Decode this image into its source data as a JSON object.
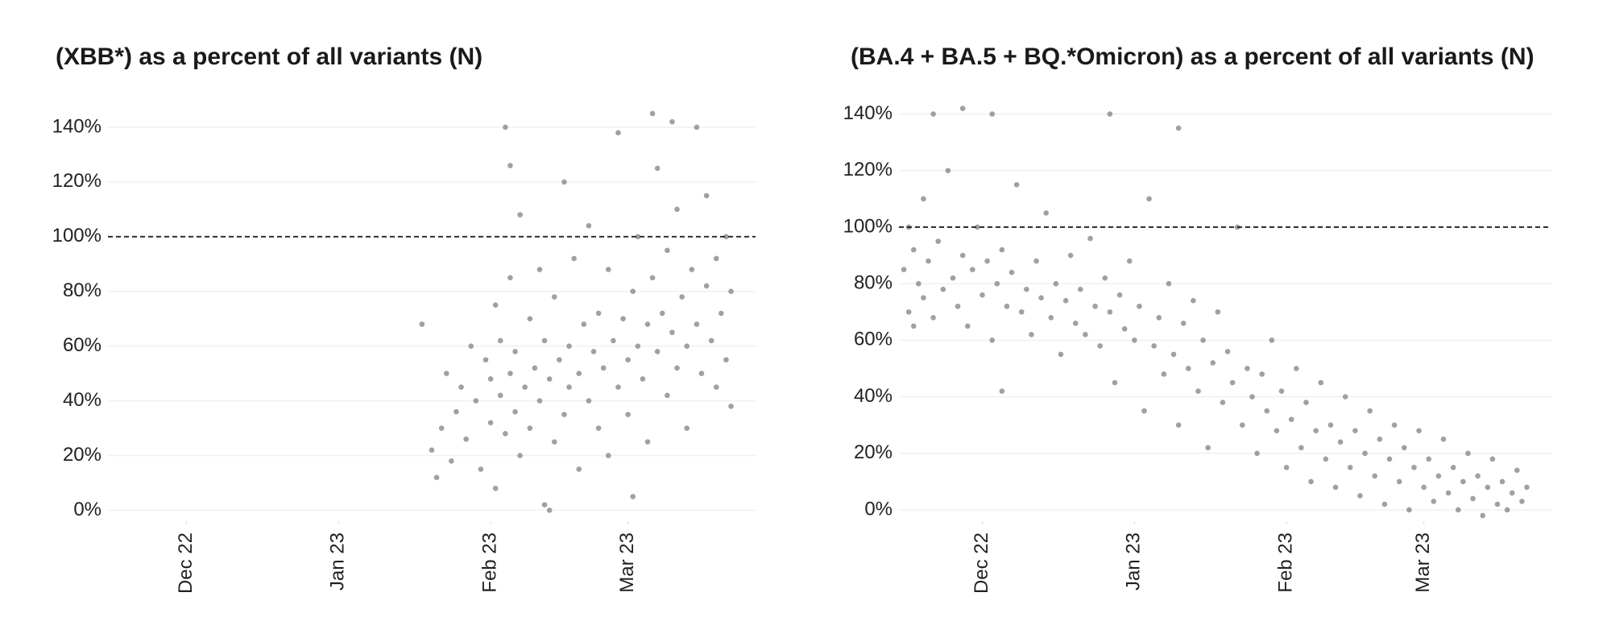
{
  "chart_data": [
    {
      "type": "scatter",
      "title": "(XBB*) as a percent of all variants (N)",
      "color": "#8f8f8f",
      "reference_line": 100,
      "grid": true,
      "xlim": [
        -16,
        116
      ],
      "ylim": [
        -4,
        150
      ],
      "xticks": [
        {
          "value": 0,
          "label": "Dec 22"
        },
        {
          "value": 31,
          "label": "Jan 23"
        },
        {
          "value": 62,
          "label": "Feb 23"
        },
        {
          "value": 90,
          "label": "Mar 23"
        }
      ],
      "yticks": [
        {
          "value": 0,
          "label": "0%"
        },
        {
          "value": 20,
          "label": "20%"
        },
        {
          "value": 40,
          "label": "40%"
        },
        {
          "value": 60,
          "label": "60%"
        },
        {
          "value": 80,
          "label": "80%"
        },
        {
          "value": 100,
          "label": "100%"
        },
        {
          "value": 120,
          "label": "120%"
        },
        {
          "value": 140,
          "label": "140%"
        }
      ],
      "x": [
        48,
        50,
        51,
        52,
        53,
        54,
        55,
        56,
        57,
        58,
        59,
        60,
        61,
        62,
        62,
        63,
        63,
        64,
        64,
        65,
        66,
        66,
        67,
        67,
        68,
        68,
        69,
        70,
        70,
        71,
        72,
        72,
        73,
        73,
        74,
        75,
        75,
        76,
        77,
        77,
        78,
        78,
        79,
        80,
        80,
        81,
        82,
        82,
        83,
        84,
        84,
        85,
        86,
        86,
        87,
        88,
        88,
        89,
        90,
        90,
        91,
        92,
        92,
        93,
        94,
        94,
        95,
        96,
        96,
        97,
        98,
        98,
        99,
        100,
        100,
        101,
        102,
        102,
        103,
        104,
        104,
        105,
        106,
        106,
        107,
        108,
        108,
        109,
        110,
        110,
        111,
        111,
        65,
        66,
        95,
        99,
        74,
        91
      ],
      "values": [
        68,
        22,
        12,
        30,
        50,
        18,
        36,
        45,
        26,
        60,
        40,
        15,
        55,
        32,
        48,
        75,
        8,
        42,
        62,
        28,
        50,
        85,
        36,
        58,
        108,
        20,
        45,
        70,
        30,
        52,
        88,
        40,
        2,
        62,
        48,
        25,
        78,
        55,
        35,
        120,
        60,
        45,
        92,
        50,
        15,
        68,
        40,
        104,
        58,
        30,
        72,
        52,
        88,
        20,
        62,
        45,
        138,
        70,
        55,
        35,
        80,
        60,
        100,
        48,
        68,
        25,
        85,
        58,
        125,
        72,
        42,
        95,
        65,
        52,
        110,
        78,
        60,
        30,
        88,
        68,
        140,
        50,
        82,
        115,
        62,
        45,
        92,
        72,
        55,
        100,
        80,
        38,
        140,
        126,
        145,
        142,
        0,
        5
      ]
    },
    {
      "type": "scatter",
      "title": "(BA.4 + BA.5 + BQ.*Omicron) as a percent of all variants (N)",
      "color": "#8f8f8f",
      "reference_line": 100,
      "grid": true,
      "xlim": [
        -17,
        116
      ],
      "ylim": [
        -4,
        145
      ],
      "xticks": [
        {
          "value": 0,
          "label": "Dec 22"
        },
        {
          "value": 31,
          "label": "Jan 23"
        },
        {
          "value": 62,
          "label": "Feb 23"
        },
        {
          "value": 90,
          "label": "Mar 23"
        }
      ],
      "yticks": [
        {
          "value": 0,
          "label": "0%"
        },
        {
          "value": 20,
          "label": "20%"
        },
        {
          "value": 40,
          "label": "40%"
        },
        {
          "value": 60,
          "label": "60%"
        },
        {
          "value": 80,
          "label": "80%"
        },
        {
          "value": 100,
          "label": "100%"
        },
        {
          "value": 120,
          "label": "120%"
        },
        {
          "value": 140,
          "label": "140%"
        }
      ],
      "x": [
        -16,
        -15,
        -15,
        -14,
        -14,
        -13,
        -12,
        -12,
        -11,
        -10,
        -9,
        -8,
        -7,
        -6,
        -5,
        -4,
        -3,
        -2,
        -1,
        0,
        1,
        2,
        3,
        4,
        4,
        5,
        6,
        7,
        8,
        9,
        10,
        11,
        12,
        13,
        14,
        15,
        16,
        17,
        18,
        19,
        20,
        21,
        22,
        23,
        24,
        25,
        26,
        27,
        28,
        29,
        30,
        31,
        32,
        33,
        34,
        35,
        36,
        37,
        38,
        39,
        40,
        41,
        42,
        43,
        44,
        45,
        46,
        47,
        48,
        49,
        50,
        51,
        52,
        53,
        54,
        55,
        56,
        57,
        58,
        59,
        60,
        61,
        62,
        63,
        64,
        65,
        66,
        67,
        68,
        69,
        70,
        71,
        72,
        73,
        74,
        75,
        76,
        77,
        78,
        79,
        80,
        81,
        82,
        83,
        84,
        85,
        86,
        87,
        88,
        89,
        90,
        91,
        92,
        93,
        94,
        95,
        96,
        97,
        98,
        99,
        100,
        101,
        102,
        103,
        104,
        105,
        106,
        107,
        108,
        109,
        110,
        111,
        -10,
        -4,
        2,
        26,
        40
      ],
      "values": [
        85,
        70,
        100,
        92,
        65,
        80,
        110,
        75,
        88,
        68,
        95,
        78,
        120,
        82,
        72,
        90,
        65,
        85,
        100,
        76,
        88,
        60,
        80,
        92,
        42,
        72,
        84,
        115,
        70,
        78,
        62,
        88,
        75,
        105,
        68,
        80,
        55,
        74,
        90,
        66,
        78,
        62,
        96,
        72,
        58,
        82,
        70,
        45,
        76,
        64,
        88,
        60,
        72,
        35,
        110,
        58,
        68,
        48,
        80,
        55,
        30,
        66,
        50,
        74,
        42,
        60,
        22,
        52,
        70,
        38,
        56,
        45,
        100,
        30,
        50,
        40,
        20,
        48,
        35,
        60,
        28,
        42,
        15,
        32,
        50,
        22,
        38,
        10,
        28,
        45,
        18,
        30,
        8,
        24,
        40,
        15,
        28,
        5,
        20,
        35,
        12,
        25,
        2,
        18,
        30,
        10,
        22,
        0,
        15,
        28,
        8,
        18,
        3,
        12,
        25,
        6,
        15,
        0,
        10,
        20,
        4,
        12,
        -2,
        8,
        18,
        2,
        10,
        0,
        6,
        14,
        3,
        8,
        140,
        142,
        140,
        140,
        135
      ]
    }
  ]
}
